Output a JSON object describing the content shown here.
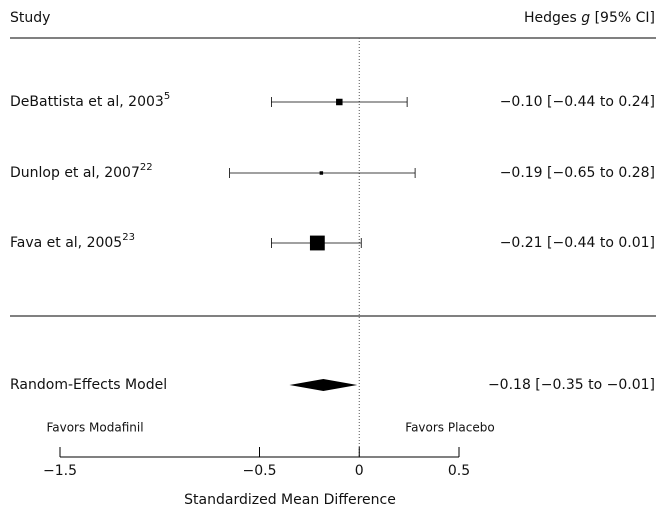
{
  "chart_data": {
    "type": "forest",
    "study_header": "Study",
    "estimate_header": [
      "Hedges ",
      "g",
      " [95% CI]"
    ],
    "studies": [
      {
        "name": "DeBattista et al, 2003",
        "ref": "5",
        "estimate": -0.1,
        "lower": -0.44,
        "upper": 0.24,
        "label": "−0.10 [−0.44 to 0.24]"
      },
      {
        "name": "Dunlop et al, 2007",
        "ref": "22",
        "estimate": -0.19,
        "lower": -0.65,
        "upper": 0.28,
        "label": "−0.19 [−0.65 to 0.28]"
      },
      {
        "name": "Fava et al, 2005",
        "ref": "23",
        "estimate": -0.21,
        "lower": -0.44,
        "upper": 0.01,
        "label": "−0.21 [−0.44 to 0.01]"
      }
    ],
    "summary": {
      "name": "Random-Effects Model",
      "estimate": -0.18,
      "lower": -0.35,
      "upper": -0.01,
      "label": "−0.18 [−0.35 to −0.01]"
    },
    "left_note": "Favors Modafinil",
    "right_note": "Favors Placebo",
    "xlabel": "Standardized Mean Difference",
    "xlim": [
      -1.5,
      0.5
    ],
    "xticks": [
      {
        "value": -1.5,
        "label": "−1.5"
      },
      {
        "value": -0.5,
        "label": "−0.5"
      },
      0,
      0.5
    ],
    "color": "#000000"
  }
}
